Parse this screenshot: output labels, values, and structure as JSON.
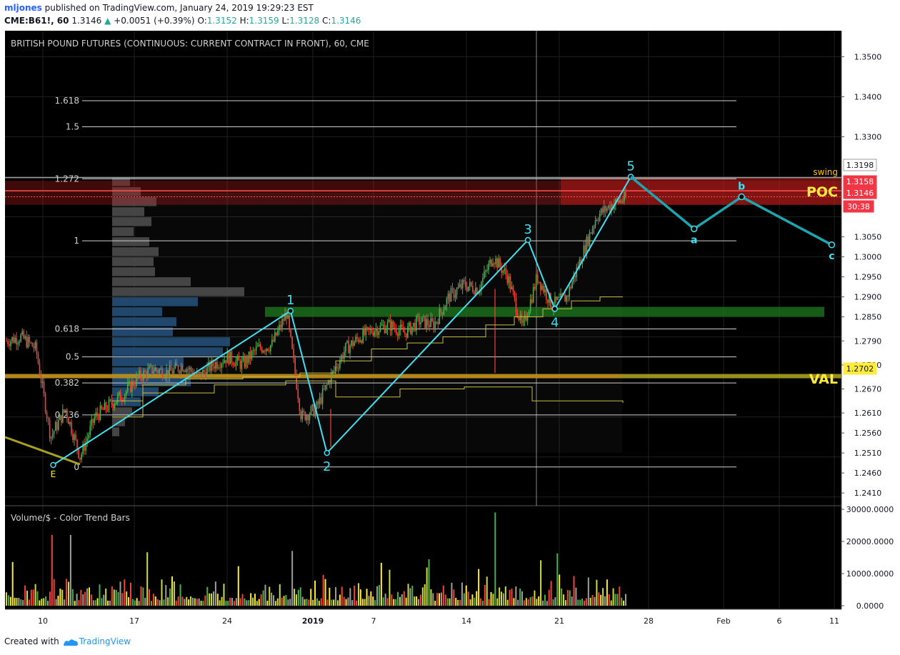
{
  "header": {
    "user": "mljones",
    "published_text": "published on TradingView.com, January 24, 2019 19:29:23 EST",
    "symbol": "CME:B61!, 60",
    "last": "1.3146",
    "change": "+0.0051 (+0.39%)",
    "o_label": "O:",
    "o_value": "1.3152",
    "h_label": "H:",
    "h_value": "1.3159",
    "l_label": "L:",
    "l_value": "1.3128",
    "c_label": "C:",
    "c_value": "1.3146"
  },
  "footer": {
    "created_with": "Created with",
    "brand": "TradingView"
  },
  "colors": {
    "background": "#000000",
    "grid": "#1f1f1f",
    "bull": "#4caf50",
    "bear": "#f44336",
    "wave": "#40e0f0",
    "wave_projection": "#1ba6b0",
    "fib_line": "#d0d0d0",
    "val_line": "#a8a020",
    "poc_zone": "#b81c1c",
    "support_zone": "#1e7a1e",
    "profile_gray": "#4a4a4a",
    "profile_blue": "#1f4f7a",
    "vwap": "#c8c040",
    "label_yellow": "#ffeb3b"
  },
  "chart_data": {
    "type": "candlestick",
    "title": "BRITISH POUND FUTURES (CONTINUOUS: CURRENT CONTRACT IN FRONT), 60, CME",
    "x_ticks": [
      "10",
      "17",
      "24",
      "2019",
      "7",
      "14",
      "21",
      "28",
      "Feb",
      "6",
      "11"
    ],
    "y_ticks": [
      "1.3500",
      "1.3400",
      "1.3300",
      "1.3198",
      "1.3158",
      "1.3146",
      "1.3050",
      "1.3000",
      "1.2950",
      "1.2900",
      "1.2850",
      "1.2790",
      "1.2730",
      "1.2702",
      "1.2670",
      "1.2610",
      "1.2560",
      "1.2510",
      "1.2460",
      "1.2410"
    ],
    "y_range": [
      1.238,
      1.3565
    ],
    "price_badges": [
      {
        "label": "1.3198",
        "kind": "gray"
      },
      {
        "label": "1.3158",
        "kind": "red"
      },
      {
        "label": "1.3146",
        "kind": "red"
      },
      {
        "label": "30:38",
        "kind": "red"
      },
      {
        "label": "1.2702",
        "kind": "yellow"
      }
    ],
    "fib_levels": [
      {
        "label": "1.618",
        "price": 1.339
      },
      {
        "label": "1.5",
        "price": 1.3325
      },
      {
        "label": "1.272",
        "price": 1.3195
      },
      {
        "label": "1",
        "price": 1.304
      },
      {
        "label": "0.618",
        "price": 1.282
      },
      {
        "label": "0.5",
        "price": 1.275
      },
      {
        "label": "0.382",
        "price": 1.2685
      },
      {
        "label": "0.236",
        "price": 1.2605
      },
      {
        "label": "0",
        "price": 1.2475
      }
    ],
    "zones": [
      {
        "name": "POC",
        "label": "POC",
        "top": 1.319,
        "bottom": 1.313
      },
      {
        "name": "support",
        "label": "",
        "top": 1.2875,
        "bottom": 1.285
      },
      {
        "name": "VAL",
        "label": "VAL",
        "price": 1.2702
      }
    ],
    "waves": [
      {
        "label": "E",
        "date_index": 3.0,
        "price": 1.248
      },
      {
        "label": "1",
        "date_index": 18.0,
        "price": 1.2865
      },
      {
        "label": "2",
        "date_index": 20.3,
        "price": 1.251
      },
      {
        "label": "3",
        "date_index": 33.0,
        "price": 1.3042
      },
      {
        "label": "4",
        "date_index": 34.7,
        "price": 1.287
      },
      {
        "label": "5",
        "date_index": 39.5,
        "price": 1.32
      }
    ],
    "projection": [
      {
        "label": "5",
        "date_index": 39.5,
        "price": 1.32
      },
      {
        "label": "a",
        "date_index": 43.5,
        "price": 1.307
      },
      {
        "label": "b",
        "date_index": 46.5,
        "price": 1.315
      },
      {
        "label": "c",
        "date_index": 52.2,
        "price": 1.303
      }
    ],
    "annotations": [
      {
        "text": "swing",
        "color": "yellow"
      },
      {
        "text": "POC",
        "color": "yellow"
      },
      {
        "text": "VAL",
        "color": "yellow"
      }
    ],
    "price_path": [
      1.279,
      1.28,
      1.277,
      1.255,
      1.262,
      1.25,
      1.26,
      1.263,
      1.266,
      1.27,
      1.272,
      1.271,
      1.273,
      1.27,
      1.273,
      1.275,
      1.273,
      1.277,
      1.278,
      1.286,
      1.26,
      1.262,
      1.27,
      1.277,
      1.28,
      1.282,
      1.283,
      1.281,
      1.284,
      1.283,
      1.29,
      1.293,
      1.292,
      1.3,
      1.295,
      1.282,
      1.295,
      1.288,
      1.29,
      1.3,
      1.31,
      1.313,
      1.3146
    ],
    "volume_panel": {
      "title": "Volume/$ - Color Trend Bars",
      "y_ticks": [
        "30000.0000",
        "20000.0000",
        "10000.0000",
        "0.0000"
      ],
      "y_range": [
        0,
        30000
      ]
    }
  }
}
